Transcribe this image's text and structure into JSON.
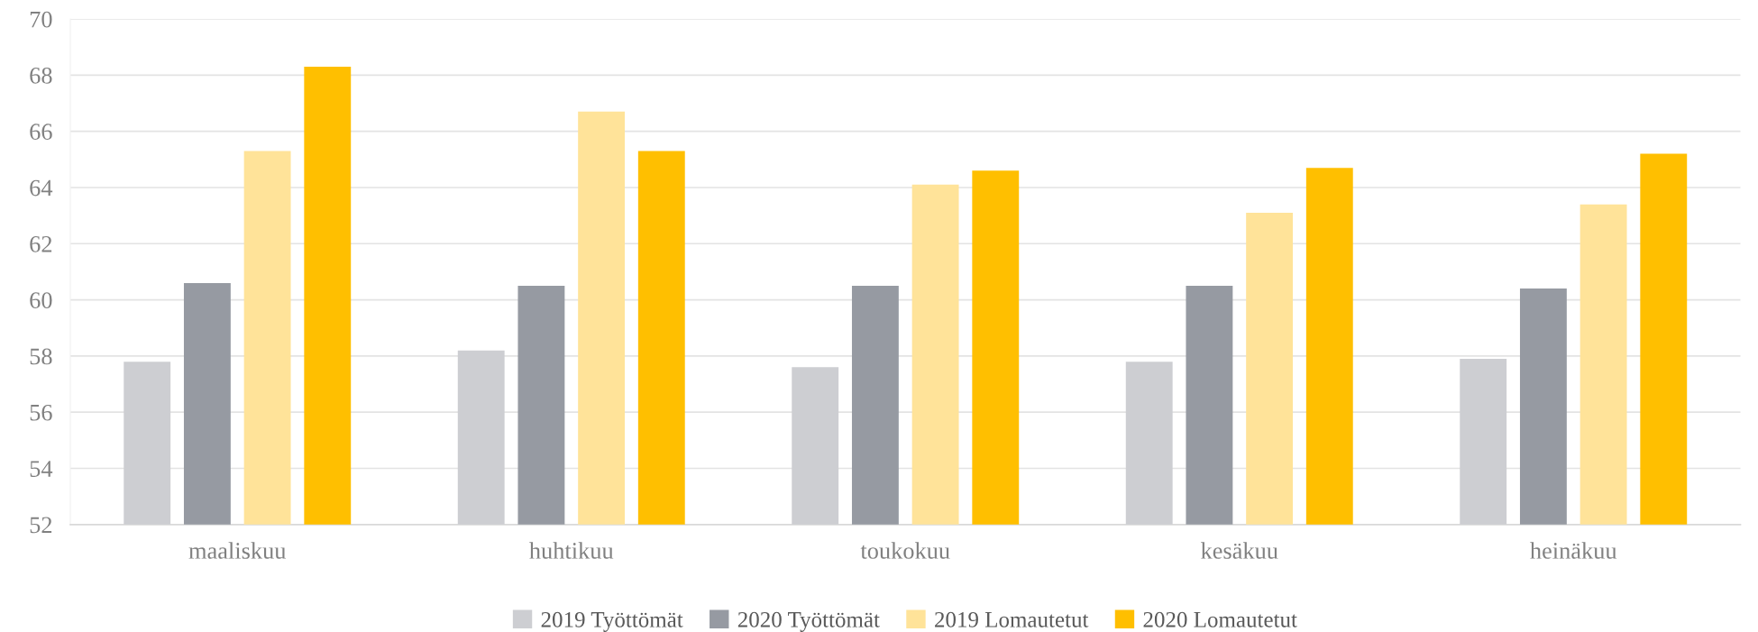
{
  "chart_data": {
    "type": "bar",
    "categories": [
      "maaliskuu",
      "huhtikuu",
      "toukokuu",
      "kesäkuu",
      "heinäkuu"
    ],
    "series": [
      {
        "name": "2019 Työttömät",
        "color": "#cdced2",
        "values": [
          57.8,
          58.2,
          57.6,
          57.8,
          57.9
        ]
      },
      {
        "name": "2020 Työttömät",
        "color": "#969aa2",
        "values": [
          60.6,
          60.5,
          60.5,
          60.5,
          60.4
        ]
      },
      {
        "name": "2019 Lomautetut",
        "color": "#ffe399",
        "values": [
          65.3,
          66.7,
          64.1,
          63.1,
          63.4
        ]
      },
      {
        "name": "2020 Lomautetut",
        "color": "#ffbf00",
        "values": [
          68.3,
          65.3,
          64.6,
          64.7,
          65.2
        ]
      }
    ],
    "ylim": [
      52,
      70
    ],
    "yticks": [
      52,
      54,
      56,
      58,
      60,
      62,
      64,
      66,
      68,
      70
    ],
    "grid": "y",
    "legend": "bottom"
  }
}
